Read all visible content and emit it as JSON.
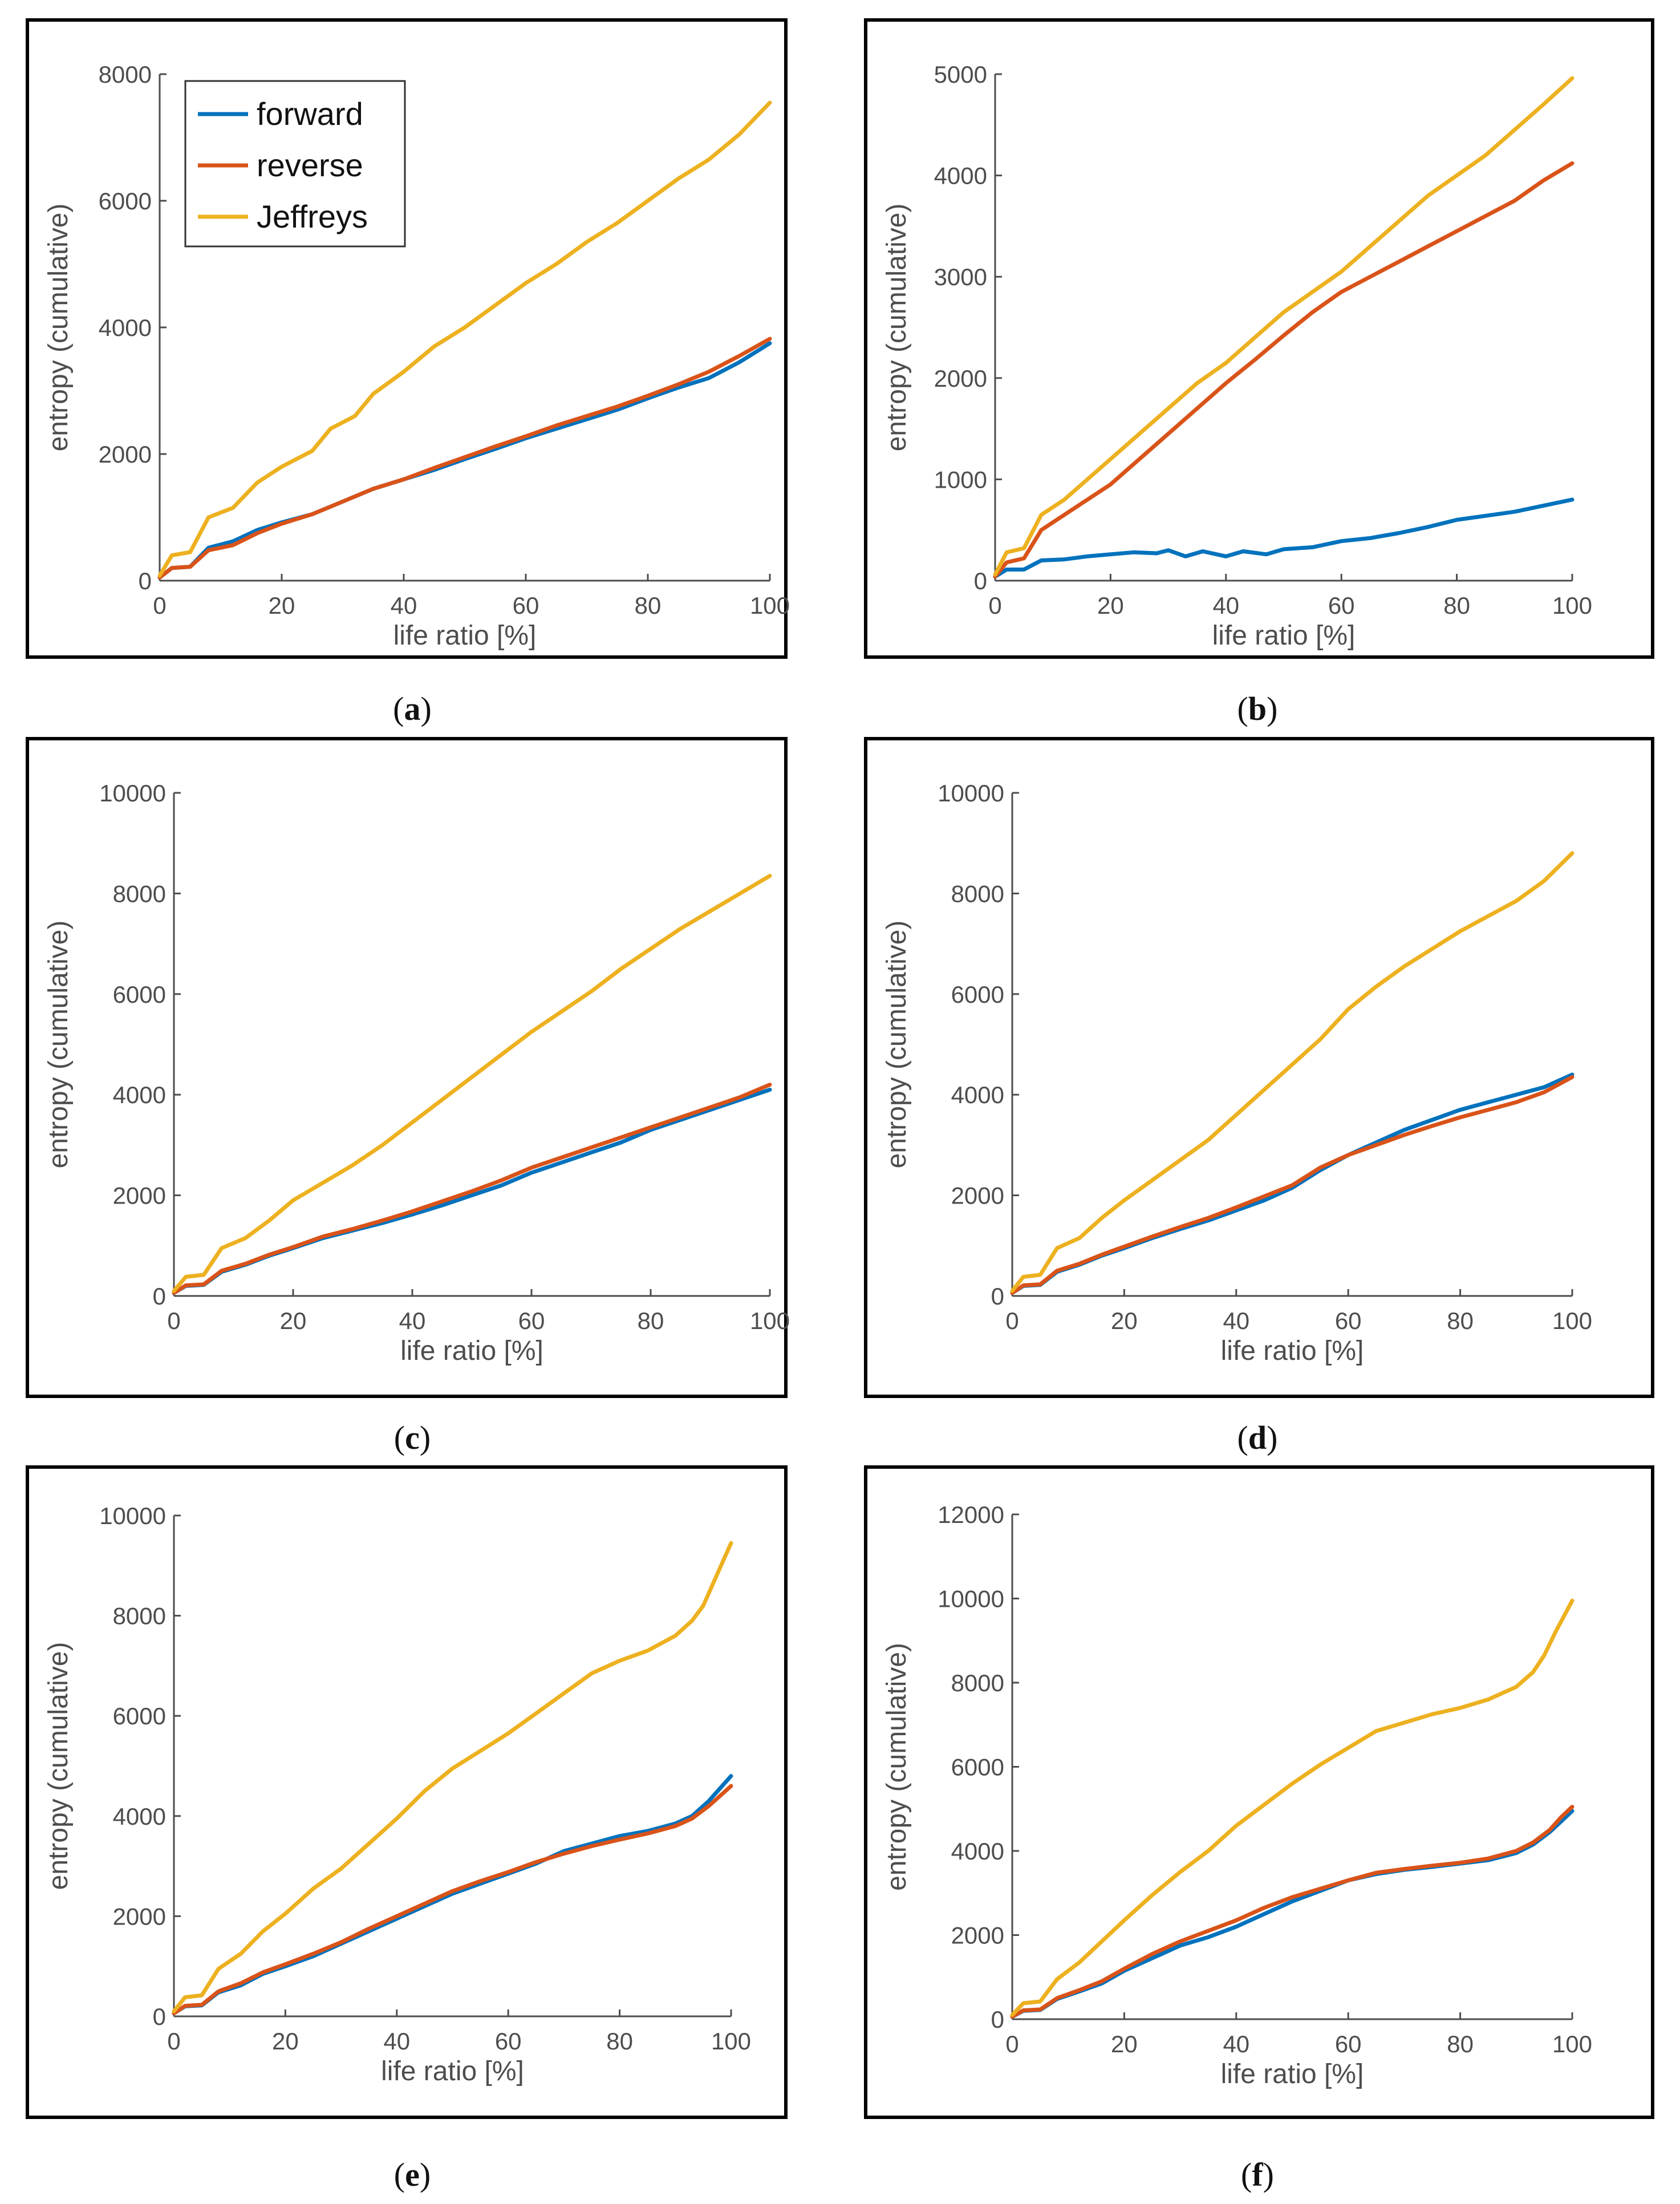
{
  "colors": {
    "forward": "#0072BD",
    "reverse": "#D95319",
    "Jeffreys": "#EDB120",
    "axis": "#4d4d4d",
    "frame": "#000000"
  },
  "chart_data": [
    {
      "id": "a",
      "caption": [
        "(",
        "a",
        ")"
      ],
      "type": "line",
      "xlabel": "life ratio [%]",
      "ylabel": "entropy (cumulative)",
      "xlim": [
        0,
        100
      ],
      "ylim": [
        0,
        8000
      ],
      "xticks": [
        0,
        20,
        40,
        60,
        80,
        100
      ],
      "yticks": [
        0,
        2000,
        4000,
        6000,
        8000
      ],
      "legend": [
        "forward",
        "reverse",
        "Jeffreys"
      ],
      "series": [
        {
          "name": "forward",
          "x": [
            0,
            2,
            5,
            8,
            12,
            16,
            20,
            25,
            30,
            35,
            40,
            45,
            50,
            55,
            60,
            65,
            70,
            75,
            80,
            85,
            90,
            95,
            100
          ],
          "values": [
            50,
            200,
            220,
            520,
            620,
            800,
            920,
            1050,
            1250,
            1450,
            1600,
            1750,
            1920,
            2080,
            2250,
            2400,
            2550,
            2700,
            2880,
            3050,
            3200,
            3450,
            3750
          ]
        },
        {
          "name": "reverse",
          "x": [
            0,
            2,
            5,
            8,
            12,
            16,
            20,
            25,
            30,
            35,
            40,
            45,
            50,
            55,
            60,
            65,
            70,
            75,
            80,
            85,
            90,
            95,
            100
          ],
          "values": [
            50,
            200,
            220,
            480,
            560,
            750,
            900,
            1050,
            1250,
            1450,
            1600,
            1780,
            1950,
            2120,
            2280,
            2450,
            2600,
            2750,
            2920,
            3100,
            3300,
            3550,
            3820
          ]
        },
        {
          "name": "Jeffreys",
          "x": [
            0,
            2,
            5,
            8,
            12,
            16,
            20,
            25,
            28,
            32,
            35,
            40,
            45,
            50,
            55,
            60,
            65,
            70,
            75,
            80,
            85,
            90,
            95,
            100
          ],
          "values": [
            80,
            400,
            450,
            1000,
            1150,
            1550,
            1800,
            2050,
            2400,
            2600,
            2950,
            3300,
            3700,
            4000,
            4350,
            4700,
            5000,
            5350,
            5650,
            6000,
            6350,
            6650,
            7050,
            7550
          ]
        }
      ]
    },
    {
      "id": "b",
      "caption": [
        "(",
        "b",
        ")"
      ],
      "type": "line",
      "xlabel": "life ratio [%]",
      "ylabel": "entropy (cumulative)",
      "xlim": [
        0,
        100
      ],
      "ylim": [
        0,
        5000
      ],
      "xticks": [
        0,
        20,
        40,
        60,
        80,
        100
      ],
      "yticks": [
        0,
        1000,
        2000,
        3000,
        4000,
        5000
      ],
      "series": [
        {
          "name": "forward",
          "x": [
            0,
            2,
            5,
            8,
            12,
            16,
            20,
            24,
            28,
            30,
            33,
            36,
            40,
            43,
            47,
            50,
            55,
            60,
            65,
            70,
            75,
            80,
            85,
            90,
            95,
            100
          ],
          "values": [
            40,
            110,
            110,
            200,
            210,
            240,
            260,
            280,
            270,
            300,
            240,
            290,
            240,
            290,
            260,
            310,
            330,
            390,
            420,
            470,
            530,
            600,
            640,
            680,
            740,
            800
          ]
        },
        {
          "name": "reverse",
          "x": [
            0,
            2,
            5,
            8,
            12,
            16,
            20,
            25,
            30,
            35,
            40,
            45,
            50,
            55,
            60,
            65,
            70,
            75,
            80,
            85,
            90,
            95,
            100
          ],
          "values": [
            40,
            180,
            220,
            500,
            650,
            800,
            950,
            1200,
            1450,
            1700,
            1950,
            2180,
            2420,
            2650,
            2850,
            3000,
            3150,
            3300,
            3450,
            3600,
            3750,
            3950,
            4120
          ]
        },
        {
          "name": "Jeffreys",
          "x": [
            0,
            2,
            5,
            8,
            12,
            16,
            20,
            25,
            30,
            35,
            40,
            45,
            50,
            55,
            60,
            65,
            70,
            75,
            80,
            85,
            90,
            95,
            100
          ],
          "values": [
            60,
            280,
            320,
            650,
            800,
            1000,
            1200,
            1450,
            1700,
            1950,
            2150,
            2400,
            2650,
            2850,
            3050,
            3300,
            3550,
            3800,
            4000,
            4200,
            4450,
            4700,
            4960
          ]
        }
      ]
    },
    {
      "id": "c",
      "caption": [
        "(",
        "c",
        ")"
      ],
      "type": "line",
      "xlabel": "life ratio [%]",
      "ylabel": "entropy (cumulative)",
      "xlim": [
        0,
        100
      ],
      "ylim": [
        0,
        10000
      ],
      "xticks": [
        0,
        20,
        40,
        60,
        80,
        100
      ],
      "yticks": [
        0,
        2000,
        4000,
        6000,
        8000,
        10000
      ],
      "series": [
        {
          "name": "forward",
          "x": [
            0,
            2,
            5,
            8,
            12,
            16,
            20,
            25,
            30,
            35,
            40,
            45,
            50,
            55,
            60,
            65,
            70,
            75,
            80,
            85,
            90,
            95,
            100
          ],
          "values": [
            60,
            200,
            220,
            480,
            620,
            800,
            950,
            1150,
            1300,
            1450,
            1620,
            1800,
            2000,
            2200,
            2450,
            2650,
            2850,
            3050,
            3300,
            3500,
            3700,
            3900,
            4100
          ]
        },
        {
          "name": "reverse",
          "x": [
            0,
            2,
            5,
            8,
            12,
            16,
            20,
            25,
            30,
            35,
            40,
            45,
            50,
            55,
            60,
            65,
            70,
            75,
            80,
            85,
            90,
            95,
            100
          ],
          "values": [
            60,
            210,
            230,
            500,
            640,
            820,
            970,
            1180,
            1330,
            1500,
            1680,
            1880,
            2080,
            2300,
            2550,
            2750,
            2950,
            3150,
            3350,
            3550,
            3750,
            3950,
            4200
          ]
        },
        {
          "name": "Jeffreys",
          "x": [
            0,
            2,
            5,
            8,
            12,
            16,
            20,
            25,
            30,
            35,
            40,
            45,
            50,
            55,
            60,
            65,
            70,
            75,
            80,
            85,
            90,
            95,
            100
          ],
          "values": [
            100,
            380,
            420,
            950,
            1150,
            1500,
            1900,
            2250,
            2600,
            3000,
            3450,
            3900,
            4350,
            4800,
            5250,
            5650,
            6050,
            6500,
            6900,
            7300,
            7650,
            8000,
            8350
          ]
        }
      ]
    },
    {
      "id": "d",
      "caption": [
        "(",
        "d",
        ")"
      ],
      "type": "line",
      "xlabel": "life ratio [%]",
      "ylabel": "entropy (cumulative)",
      "xlim": [
        0,
        100
      ],
      "ylim": [
        0,
        10000
      ],
      "xticks": [
        0,
        20,
        40,
        60,
        80,
        100
      ],
      "yticks": [
        0,
        2000,
        4000,
        6000,
        8000,
        10000
      ],
      "series": [
        {
          "name": "forward",
          "x": [
            0,
            2,
            5,
            8,
            12,
            16,
            20,
            25,
            30,
            35,
            40,
            45,
            50,
            55,
            60,
            65,
            70,
            75,
            80,
            85,
            90,
            95,
            100
          ],
          "values": [
            60,
            200,
            220,
            480,
            620,
            800,
            950,
            1150,
            1330,
            1500,
            1700,
            1900,
            2150,
            2500,
            2800,
            3050,
            3300,
            3500,
            3700,
            3850,
            4000,
            4150,
            4400
          ]
        },
        {
          "name": "reverse",
          "x": [
            0,
            2,
            5,
            8,
            12,
            16,
            20,
            25,
            30,
            35,
            40,
            45,
            50,
            55,
            60,
            65,
            70,
            75,
            80,
            85,
            90,
            95,
            100
          ],
          "values": [
            60,
            210,
            230,
            500,
            640,
            820,
            980,
            1180,
            1370,
            1550,
            1760,
            1980,
            2200,
            2550,
            2800,
            3000,
            3200,
            3380,
            3550,
            3700,
            3850,
            4050,
            4350
          ]
        },
        {
          "name": "Jeffreys",
          "x": [
            0,
            2,
            5,
            8,
            12,
            16,
            20,
            25,
            30,
            35,
            40,
            45,
            50,
            55,
            60,
            65,
            70,
            75,
            80,
            85,
            90,
            95,
            100
          ],
          "values": [
            100,
            380,
            420,
            950,
            1150,
            1550,
            1900,
            2300,
            2700,
            3100,
            3600,
            4100,
            4600,
            5100,
            5700,
            6150,
            6550,
            6900,
            7250,
            7550,
            7850,
            8250,
            8800
          ]
        }
      ]
    },
    {
      "id": "e",
      "caption": [
        "(",
        "e",
        ")"
      ],
      "type": "line",
      "xlabel": "life ratio [%]",
      "ylabel": "entropy (cumulative)",
      "xlim": [
        0,
        100
      ],
      "ylim": [
        0,
        10000
      ],
      "xticks": [
        0,
        20,
        40,
        60,
        80,
        100
      ],
      "yticks": [
        0,
        2000,
        4000,
        6000,
        8000,
        10000
      ],
      "series": [
        {
          "name": "forward",
          "x": [
            0,
            2,
            5,
            8,
            12,
            16,
            20,
            25,
            30,
            35,
            40,
            45,
            50,
            55,
            60,
            65,
            70,
            75,
            80,
            85,
            90,
            93,
            96,
            98,
            100
          ],
          "values": [
            60,
            200,
            220,
            480,
            620,
            850,
            1000,
            1200,
            1450,
            1700,
            1950,
            2200,
            2450,
            2650,
            2850,
            3050,
            3300,
            3450,
            3600,
            3700,
            3850,
            4000,
            4300,
            4550,
            4800
          ]
        },
        {
          "name": "reverse",
          "x": [
            0,
            2,
            5,
            8,
            12,
            16,
            20,
            25,
            30,
            35,
            40,
            45,
            50,
            55,
            60,
            65,
            70,
            75,
            80,
            85,
            90,
            93,
            96,
            98,
            100
          ],
          "values": [
            60,
            210,
            230,
            500,
            660,
            880,
            1040,
            1250,
            1480,
            1750,
            2000,
            2250,
            2500,
            2700,
            2880,
            3080,
            3250,
            3400,
            3530,
            3650,
            3800,
            3950,
            4200,
            4400,
            4600
          ]
        },
        {
          "name": "Jeffreys",
          "x": [
            0,
            2,
            5,
            8,
            12,
            16,
            20,
            25,
            30,
            35,
            40,
            45,
            50,
            55,
            60,
            65,
            70,
            75,
            80,
            85,
            90,
            93,
            95,
            97,
            99,
            100
          ],
          "values": [
            100,
            380,
            420,
            950,
            1250,
            1700,
            2050,
            2550,
            2950,
            3450,
            3950,
            4500,
            4950,
            5300,
            5650,
            6050,
            6450,
            6850,
            7100,
            7300,
            7600,
            7900,
            8200,
            8700,
            9200,
            9450
          ]
        }
      ]
    },
    {
      "id": "f",
      "caption": [
        "(",
        "f",
        ")"
      ],
      "type": "line",
      "xlabel": "life ratio [%]",
      "ylabel": "entropy (cumulative)",
      "xlim": [
        0,
        100
      ],
      "ylim": [
        0,
        12000
      ],
      "xticks": [
        0,
        20,
        40,
        60,
        80,
        100
      ],
      "yticks": [
        0,
        2000,
        4000,
        6000,
        8000,
        10000,
        12000
      ],
      "series": [
        {
          "name": "forward",
          "x": [
            0,
            2,
            5,
            8,
            12,
            16,
            20,
            25,
            30,
            35,
            40,
            45,
            50,
            55,
            60,
            65,
            70,
            75,
            80,
            85,
            90,
            93,
            96,
            98,
            100
          ],
          "values": [
            60,
            200,
            220,
            480,
            660,
            850,
            1150,
            1450,
            1750,
            1950,
            2200,
            2500,
            2800,
            3050,
            3300,
            3450,
            3550,
            3620,
            3700,
            3780,
            3950,
            4150,
            4450,
            4700,
            4950
          ]
        },
        {
          "name": "reverse",
          "x": [
            0,
            2,
            5,
            8,
            12,
            16,
            20,
            25,
            30,
            35,
            40,
            45,
            50,
            55,
            60,
            65,
            70,
            75,
            80,
            85,
            90,
            93,
            96,
            98,
            100
          ],
          "values": [
            60,
            210,
            230,
            500,
            690,
            900,
            1200,
            1550,
            1850,
            2100,
            2350,
            2650,
            2900,
            3100,
            3300,
            3480,
            3570,
            3650,
            3720,
            3820,
            4000,
            4200,
            4500,
            4800,
            5050
          ]
        },
        {
          "name": "Jeffreys",
          "x": [
            0,
            2,
            5,
            8,
            12,
            16,
            20,
            25,
            30,
            35,
            40,
            45,
            50,
            55,
            60,
            65,
            70,
            75,
            80,
            85,
            90,
            93,
            95,
            97,
            99,
            100
          ],
          "values": [
            100,
            380,
            420,
            950,
            1350,
            1850,
            2350,
            2950,
            3500,
            4000,
            4600,
            5100,
            5600,
            6050,
            6450,
            6850,
            7050,
            7250,
            7400,
            7600,
            7900,
            8250,
            8650,
            9200,
            9700,
            9950
          ]
        }
      ]
    }
  ]
}
